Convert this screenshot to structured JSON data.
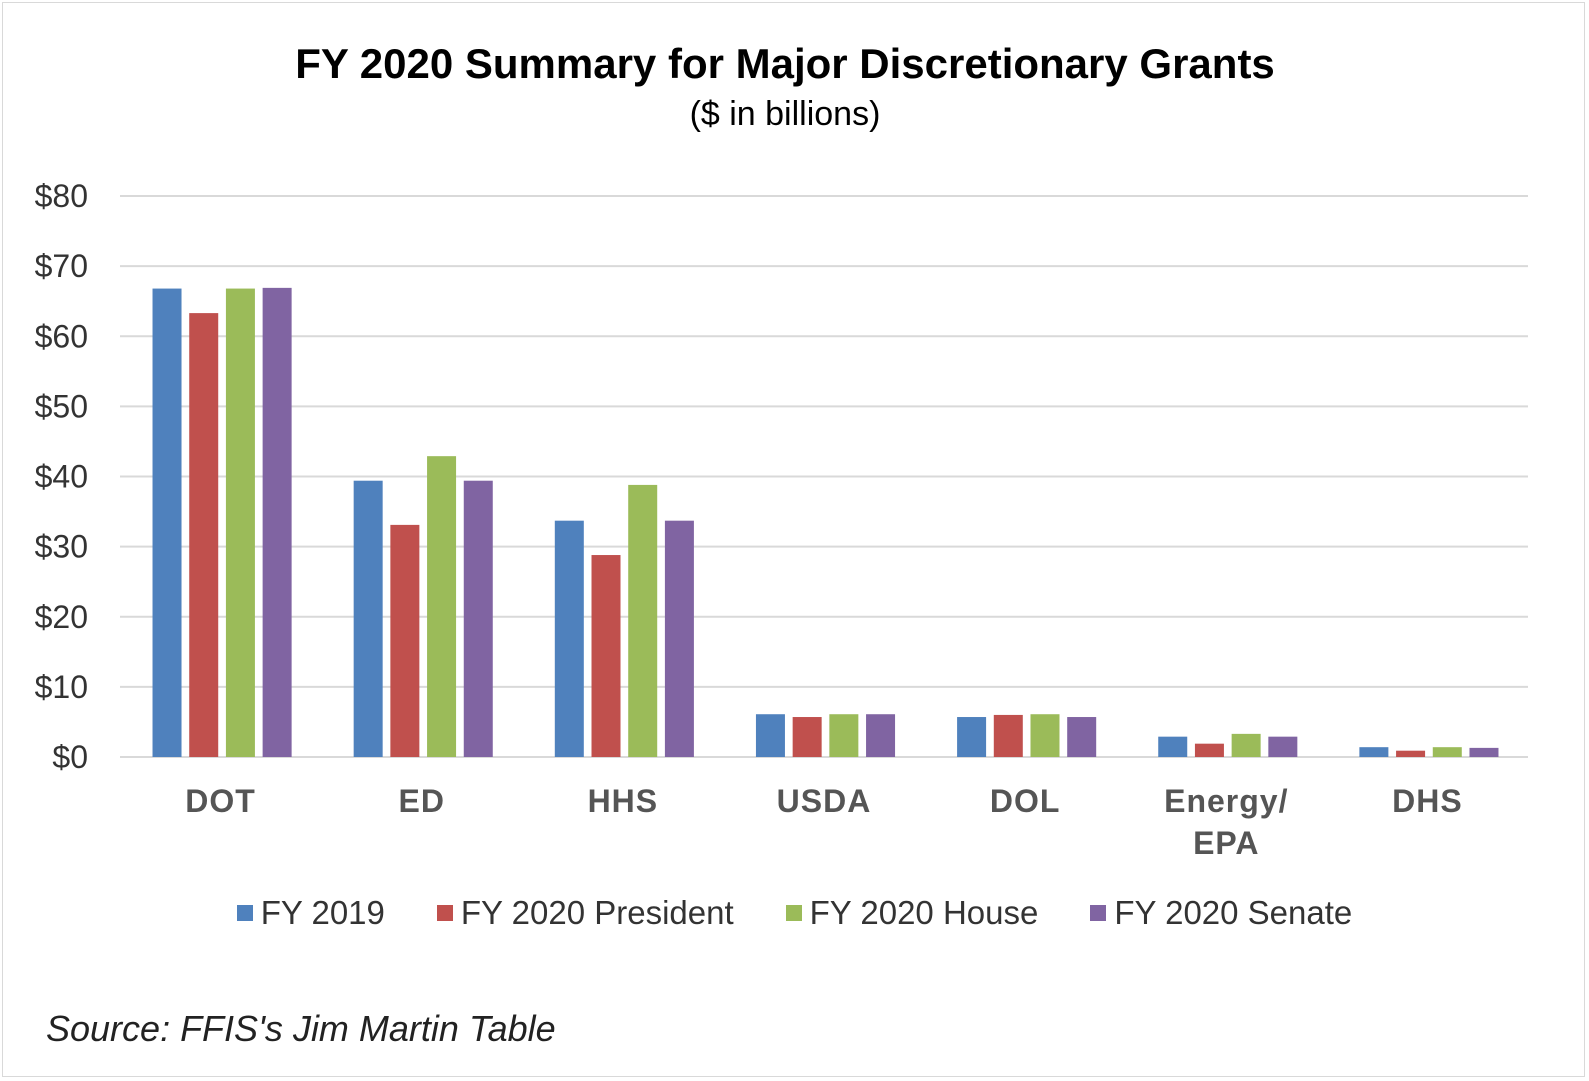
{
  "chart_data": {
    "type": "bar",
    "title": "FY 2020 Summary for Major Discretionary Grants",
    "subtitle": "($ in billions)",
    "categories": [
      "DOT",
      "ED",
      "HHS",
      "USDA",
      "DOL",
      "Energy/\nEPA",
      "DHS"
    ],
    "series": [
      {
        "name": "FY 2019",
        "color": "#4f81bd",
        "values": [
          66.8,
          39.4,
          33.7,
          6.1,
          5.7,
          2.9,
          1.4
        ]
      },
      {
        "name": "FY 2020 President",
        "color": "#c0504d",
        "values": [
          63.3,
          33.1,
          28.8,
          5.7,
          6.0,
          1.9,
          0.9
        ]
      },
      {
        "name": "FY 2020 House",
        "color": "#9bbb59",
        "values": [
          66.8,
          42.9,
          38.8,
          6.1,
          6.1,
          3.3,
          1.4
        ]
      },
      {
        "name": "FY 2020 Senate",
        "color": "#8064a2",
        "values": [
          66.9,
          39.4,
          33.7,
          6.1,
          5.7,
          2.9,
          1.3
        ]
      }
    ],
    "ylim": [
      0,
      80
    ],
    "yticks": [
      {
        "value": 0,
        "label": "$0"
      },
      {
        "value": 10,
        "label": "$10"
      },
      {
        "value": 20,
        "label": "$20"
      },
      {
        "value": 30,
        "label": "$30"
      },
      {
        "value": 40,
        "label": "$40"
      },
      {
        "value": 50,
        "label": "$50"
      },
      {
        "value": 60,
        "label": "$60"
      },
      {
        "value": 70,
        "label": "$70"
      },
      {
        "value": 80,
        "label": "$80"
      }
    ],
    "grid": true,
    "legend": "bottom",
    "source": "Source: FFIS's Jim Martin Table"
  }
}
